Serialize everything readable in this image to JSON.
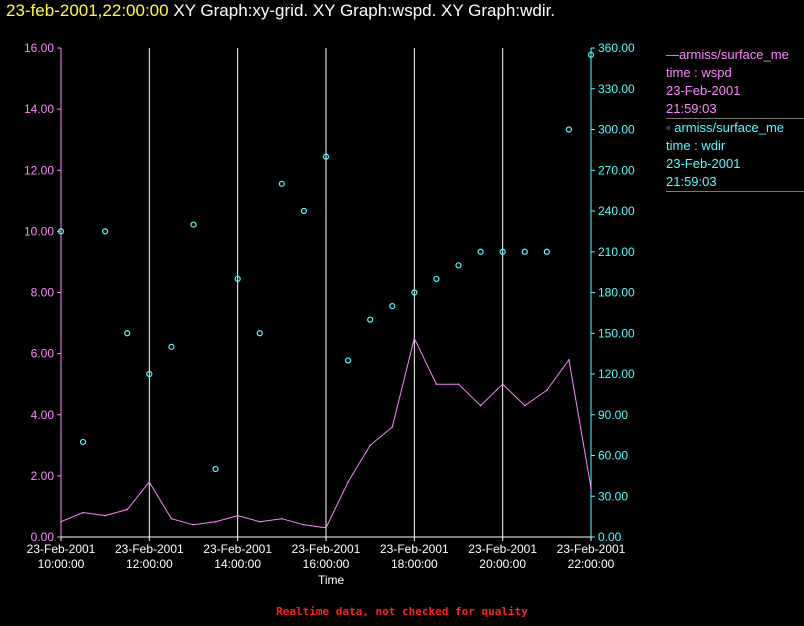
{
  "header": {
    "timestamp": "23-feb-2001,22:00:00",
    "graphs": "XY Graph:xy-grid.  XY Graph:wspd.  XY Graph:wdir."
  },
  "legend": {
    "series1": {
      "line1": "—armiss/surface_me",
      "line2": "time : wspd",
      "line3": "23-Feb-2001",
      "line4": "21:59:03"
    },
    "series2": {
      "line1": "◦ armiss/surface_me",
      "line2": "time : wdir",
      "line3": "23-Feb-2001",
      "line4": "21:59:03"
    }
  },
  "footer": "Realtime data, not checked for quality",
  "colors": {
    "wspd": "#ff88ff",
    "wdir": "#55ffff",
    "grid": "#ffffff",
    "axes": "#ffffff"
  },
  "chart_data": {
    "type": "line",
    "xlabel": "Time",
    "x_ticks": [
      {
        "date": "23-Feb-2001",
        "time": "10:00:00"
      },
      {
        "date": "23-Feb-2001",
        "time": "12:00:00"
      },
      {
        "date": "23-Feb-2001",
        "time": "14:00:00"
      },
      {
        "date": "23-Feb-2001",
        "time": "16:00:00"
      },
      {
        "date": "23-Feb-2001",
        "time": "18:00:00"
      },
      {
        "date": "23-Feb-2001",
        "time": "20:00:00"
      },
      {
        "date": "23-Feb-2001",
        "time": "22:00:00"
      }
    ],
    "x_range": [
      "23-Feb-2001 10:00:00",
      "23-Feb-2001 22:00:00"
    ],
    "y_left": {
      "label": "",
      "range": [
        0,
        16
      ],
      "ticks": [
        "0.00",
        "2.00",
        "4.00",
        "6.00",
        "8.00",
        "10.00",
        "12.00",
        "14.00",
        "16.00"
      ]
    },
    "y_right": {
      "label": "",
      "range": [
        0,
        360
      ],
      "ticks": [
        "0.00",
        "30.00",
        "60.00",
        "90.00",
        "120.00",
        "150.00",
        "180.00",
        "210.00",
        "240.00",
        "270.00",
        "300.00",
        "330.00",
        "360.00"
      ]
    },
    "grid": "vertical",
    "legend_position": "right",
    "series": [
      {
        "name": "armiss/surface_me time : wspd",
        "axis": "left",
        "style": "line",
        "x": [
          "23-Feb-2001 10:00",
          "23-Feb-2001 10:30",
          "23-Feb-2001 11:00",
          "23-Feb-2001 11:30",
          "23-Feb-2001 12:00",
          "23-Feb-2001 12:30",
          "23-Feb-2001 13:00",
          "23-Feb-2001 13:30",
          "23-Feb-2001 14:00",
          "23-Feb-2001 14:30",
          "23-Feb-2001 15:00",
          "23-Feb-2001 15:30",
          "23-Feb-2001 16:00",
          "23-Feb-2001 16:30",
          "23-Feb-2001 17:00",
          "23-Feb-2001 17:30",
          "23-Feb-2001 18:00",
          "23-Feb-2001 18:30",
          "23-Feb-2001 19:00",
          "23-Feb-2001 19:30",
          "23-Feb-2001 20:00",
          "23-Feb-2001 20:30",
          "23-Feb-2001 21:00",
          "23-Feb-2001 21:30",
          "23-Feb-2001 22:00"
        ],
        "values": [
          0.5,
          0.8,
          0.7,
          0.9,
          1.8,
          0.6,
          0.4,
          0.5,
          0.7,
          0.5,
          0.6,
          0.4,
          0.3,
          1.8,
          3.0,
          3.6,
          6.5,
          5.0,
          5.0,
          4.3,
          5.0,
          4.3,
          4.8,
          5.8,
          1.6
        ]
      },
      {
        "name": "armiss/surface_me time : wdir",
        "axis": "right",
        "style": "scatter",
        "x": [
          "23-Feb-2001 10:00",
          "23-Feb-2001 10:30",
          "23-Feb-2001 11:00",
          "23-Feb-2001 11:30",
          "23-Feb-2001 12:00",
          "23-Feb-2001 12:30",
          "23-Feb-2001 13:00",
          "23-Feb-2001 13:30",
          "23-Feb-2001 14:00",
          "23-Feb-2001 14:30",
          "23-Feb-2001 15:00",
          "23-Feb-2001 15:30",
          "23-Feb-2001 16:00",
          "23-Feb-2001 16:30",
          "23-Feb-2001 17:00",
          "23-Feb-2001 17:30",
          "23-Feb-2001 18:00",
          "23-Feb-2001 18:30",
          "23-Feb-2001 19:00",
          "23-Feb-2001 19:30",
          "23-Feb-2001 20:00",
          "23-Feb-2001 20:30",
          "23-Feb-2001 21:00",
          "23-Feb-2001 21:30",
          "23-Feb-2001 22:00"
        ],
        "values": [
          225,
          70,
          225,
          150,
          120,
          140,
          230,
          50,
          190,
          150,
          260,
          240,
          280,
          130,
          160,
          170,
          180,
          190,
          200,
          210,
          210,
          210,
          210,
          300,
          355
        ]
      }
    ]
  }
}
